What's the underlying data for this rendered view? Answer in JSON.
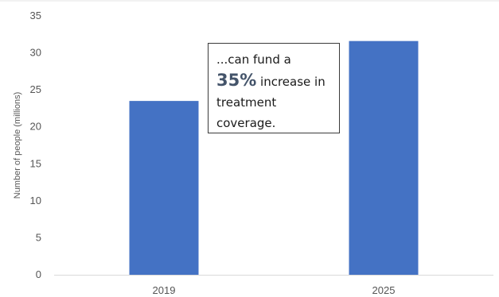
{
  "chart_data": {
    "type": "bar",
    "categories": [
      "2019",
      "2025"
    ],
    "values": [
      23.5,
      31.6
    ],
    "title": "",
    "xlabel": "",
    "ylabel": "Number of people (millions)",
    "ylim": [
      0,
      35
    ],
    "yticks": [
      0,
      5,
      10,
      15,
      20,
      25,
      30,
      35
    ],
    "grid": false,
    "bar_color": "#4472c4",
    "axis_color": "#d9d9d9",
    "annotation": {
      "prefix": "...can fund a",
      "highlight": "35%",
      "suffix_line1": "increase in",
      "suffix_line2": "treatment",
      "suffix_line3": "coverage."
    }
  }
}
